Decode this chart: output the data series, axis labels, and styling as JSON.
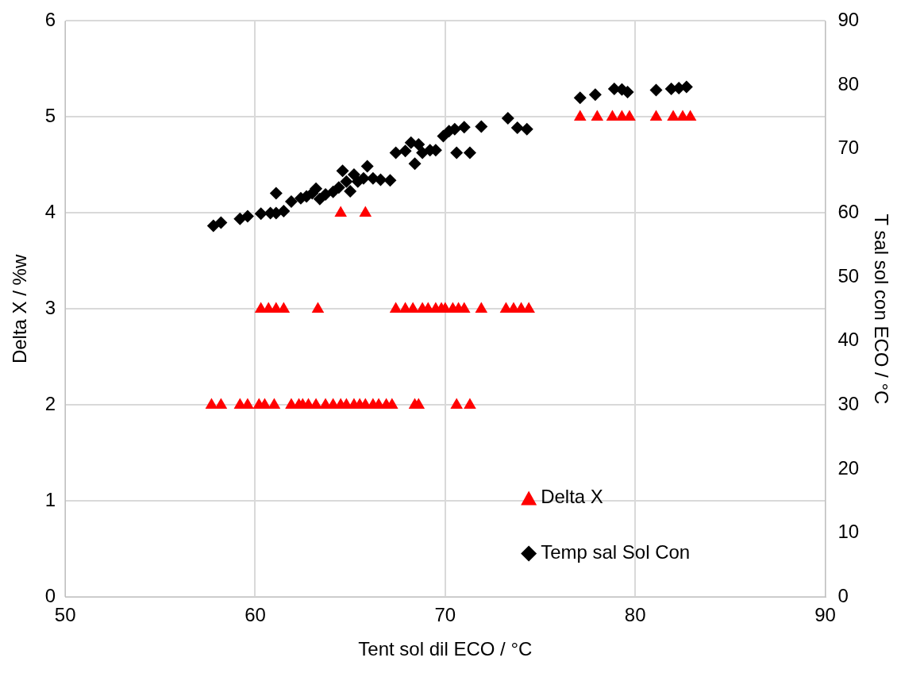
{
  "chart_data": {
    "type": "scatter",
    "xlabel": "Tent sol dil ECO / °C",
    "ylabel": "Delta X / %w",
    "y2label": "T sal sol con ECO / °C",
    "xlim": [
      50,
      90
    ],
    "xticks": [
      50,
      60,
      70,
      80,
      90
    ],
    "ylim": [
      0,
      6
    ],
    "yticks": [
      0,
      1,
      2,
      3,
      4,
      5,
      6
    ],
    "y2lim": [
      0,
      90
    ],
    "y2ticks": [
      0,
      10,
      20,
      30,
      40,
      50,
      60,
      70,
      80,
      90
    ],
    "grid": true,
    "legend": "bottom right",
    "series": [
      {
        "name": "Delta X",
        "color": "#ff0000",
        "marker": "triangle",
        "x": [
          57.7,
          58.2,
          59.2,
          59.6,
          60.2,
          60.5,
          61.0,
          61.9,
          62.3,
          62.5,
          62.8,
          63.2,
          63.7,
          64.1,
          64.5,
          64.8,
          65.2,
          65.5,
          65.8,
          66.2,
          66.5,
          66.9,
          67.2,
          68.4,
          68.6,
          70.6,
          71.3,
          60.3,
          60.7,
          61.1,
          61.5,
          63.3,
          67.4,
          67.9,
          68.3,
          68.8,
          69.1,
          69.5,
          69.8,
          70.0,
          70.4,
          70.7,
          71.0,
          71.9,
          73.2,
          73.6,
          74.0,
          74.4,
          64.5,
          65.8,
          77.1,
          78.0,
          78.8,
          79.3,
          79.7,
          81.1,
          82.0,
          82.5,
          82.9
        ],
        "values": [
          2,
          2,
          2,
          2,
          2,
          2,
          2,
          2,
          2,
          2,
          2,
          2,
          2,
          2,
          2,
          2,
          2,
          2,
          2,
          2,
          2,
          2,
          2,
          2,
          2,
          2,
          2,
          3,
          3,
          3,
          3,
          3,
          3,
          3,
          3,
          3,
          3,
          3,
          3,
          3,
          3,
          3,
          3,
          3,
          3,
          3,
          3,
          3,
          4,
          4,
          5,
          5,
          5,
          5,
          5,
          5,
          5,
          5,
          5
        ]
      },
      {
        "name": "Temp sal Sol Con",
        "color": "#000000",
        "marker": "diamond",
        "axis": "y2",
        "x": [
          57.8,
          58.2,
          59.2,
          59.6,
          60.3,
          60.8,
          61.1,
          61.5,
          61.1,
          61.9,
          62.4,
          62.7,
          63.0,
          63.2,
          63.4,
          63.7,
          64.1,
          64.4,
          64.6,
          64.8,
          65.0,
          65.2,
          65.4,
          65.7,
          65.9,
          66.2,
          66.6,
          67.1,
          67.4,
          67.9,
          68.2,
          68.4,
          68.6,
          68.8,
          69.2,
          69.5,
          69.9,
          70.2,
          70.5,
          70.6,
          71.0,
          71.3,
          71.9,
          73.3,
          73.8,
          74.3,
          77.1,
          77.9,
          78.9,
          79.3,
          79.6,
          81.1,
          81.9,
          82.3,
          82.7
        ],
        "values": [
          58.0,
          58.5,
          59.1,
          59.5,
          59.9,
          60.0,
          60.0,
          60.3,
          63.1,
          61.8,
          62.3,
          62.6,
          63.1,
          63.8,
          62.2,
          62.9,
          63.3,
          64.0,
          66.6,
          64.9,
          63.4,
          66.0,
          64.9,
          65.4,
          67.3,
          65.4,
          65.2,
          65.1,
          69.4,
          69.7,
          71.0,
          67.7,
          70.7,
          69.4,
          69.8,
          69.8,
          72.0,
          72.8,
          73.1,
          69.4,
          73.4,
          69.4,
          73.5,
          74.8,
          73.3,
          73.1,
          78.0,
          78.5,
          79.4,
          79.3,
          78.9,
          79.2,
          79.4,
          79.5,
          79.7
        ]
      }
    ]
  }
}
